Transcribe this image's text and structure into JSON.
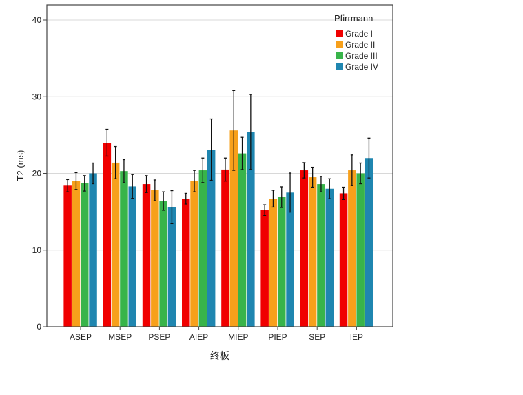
{
  "chart_data": {
    "type": "bar",
    "xlabel": "终板",
    "ylabel": "T2 (ms)",
    "ylim": [
      0,
      40
    ],
    "yticks": [
      0,
      10,
      20,
      30,
      40
    ],
    "grid": true,
    "legend_title": "Pfirrmann",
    "legend_position": "top-right",
    "categories": [
      "ASEP",
      "MSEP",
      "PSEP",
      "AIEP",
      "MIEP",
      "PIEP",
      "SEP",
      "IEP"
    ],
    "series": [
      {
        "name": "Grade I",
        "color": "#f00000",
        "values": [
          18.4,
          24.0,
          18.6,
          16.7,
          20.5,
          15.2,
          20.4,
          17.4
        ],
        "errors": [
          0.8,
          1.75,
          1.1,
          0.7,
          1.5,
          0.7,
          1.0,
          0.8
        ]
      },
      {
        "name": "Grade II",
        "color": "#f7a01b",
        "values": [
          19.0,
          21.4,
          17.8,
          19.0,
          25.6,
          16.7,
          19.5,
          20.4
        ],
        "errors": [
          1.1,
          2.1,
          1.35,
          1.4,
          5.2,
          1.1,
          1.3,
          2.0
        ]
      },
      {
        "name": "Grade III",
        "color": "#38b44a",
        "values": [
          18.7,
          20.3,
          16.4,
          20.4,
          22.6,
          16.9,
          18.6,
          20.0
        ],
        "errors": [
          1.0,
          1.5,
          1.2,
          1.6,
          2.1,
          1.35,
          1.0,
          1.35
        ]
      },
      {
        "name": "Grade IV",
        "color": "#1f86b0",
        "values": [
          20.0,
          18.3,
          15.6,
          23.1,
          25.4,
          17.5,
          18.0,
          22.0
        ],
        "errors": [
          1.35,
          1.55,
          2.15,
          4.0,
          4.9,
          2.55,
          1.3,
          2.6
        ]
      }
    ]
  }
}
